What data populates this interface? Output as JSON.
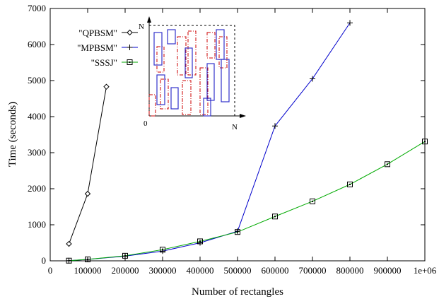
{
  "chart_data": {
    "type": "line",
    "xlabel": "Number of rectangles",
    "ylabel": "Time (seconds)",
    "xlim": [
      0,
      1000000
    ],
    "ylim": [
      0,
      7000
    ],
    "x_ticks": [
      0,
      100000,
      200000,
      300000,
      400000,
      500000,
      600000,
      700000,
      800000,
      900000,
      1000000
    ],
    "x_tick_labels": [
      "0",
      "100000",
      "200000",
      "300000",
      "400000",
      "500000",
      "600000",
      "700000",
      "800000",
      "900000",
      "1e+06"
    ],
    "y_ticks": [
      0,
      1000,
      2000,
      3000,
      4000,
      5000,
      6000,
      7000
    ],
    "y_tick_labels": [
      "0",
      "1000",
      "2000",
      "3000",
      "4000",
      "5000",
      "6000",
      "7000"
    ],
    "grid": false,
    "legend_position": "top-left",
    "series": [
      {
        "name": "\"QPBSM\"",
        "color": "#000000",
        "marker": "diamond",
        "x": [
          50000,
          100000,
          150000
        ],
        "y": [
          470,
          1860,
          4830
        ]
      },
      {
        "name": "\"MPBSM\"",
        "color": "#0000cc",
        "marker": "plus",
        "x": [
          50000,
          100000,
          200000,
          300000,
          400000,
          500000,
          600000,
          700000,
          800000
        ],
        "y": [
          5,
          40,
          130,
          270,
          500,
          820,
          3740,
          5050,
          6600
        ]
      },
      {
        "name": "\"SSSJ\"",
        "color": "#00aa00",
        "marker": "square",
        "x": [
          50000,
          100000,
          200000,
          300000,
          400000,
          500000,
          600000,
          700000,
          800000,
          900000,
          1000000
        ],
        "y": [
          5,
          40,
          140,
          310,
          540,
          800,
          1230,
          1650,
          2120,
          2680,
          3310
        ]
      }
    ],
    "inset": {
      "origin_label": "0",
      "x_axis_label": "N",
      "y_axis_label": "N",
      "solid_color": "#3333cc",
      "dashed_color": "#cc0000"
    }
  }
}
